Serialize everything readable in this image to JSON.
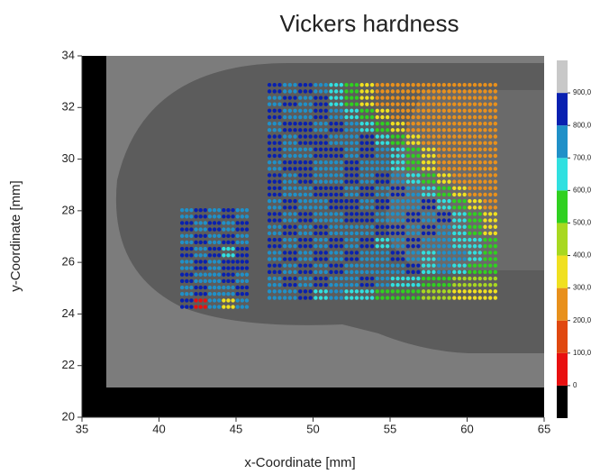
{
  "chart_data": {
    "type": "heatmap",
    "title": "Vickers hardness",
    "x_label": "x-Coordinate [mm]",
    "y_label": "y-Coordinate [mm]",
    "xlim": [
      35,
      65
    ],
    "ylim": [
      20,
      34
    ],
    "xticks": [
      35,
      40,
      45,
      50,
      55,
      60,
      65
    ],
    "yticks": [
      20,
      22,
      24,
      26,
      28,
      30,
      32,
      34
    ],
    "grids": [
      {
        "x": [
          47.5,
          48.5,
          49.5,
          50.5,
          51.5,
          52.5,
          53.5,
          54.5,
          55.5,
          56.5,
          57.5,
          58.5,
          59.5,
          60.5,
          61.5
        ],
        "y": [
          32.75,
          32.25,
          31.75,
          31.25,
          30.75,
          30.25,
          29.75,
          29.25,
          28.75,
          28.25,
          27.75,
          27.25,
          26.75,
          26.25,
          25.75,
          25.25,
          24.75
        ],
        "values": [
          [
            820,
            760,
            850,
            720,
            640,
            520,
            380,
            250,
            250,
            250,
            250,
            250,
            250,
            250,
            250
          ],
          [
            780,
            840,
            700,
            810,
            640,
            520,
            380,
            250,
            250,
            250,
            250,
            250,
            250,
            250,
            250
          ],
          [
            850,
            720,
            790,
            830,
            760,
            640,
            520,
            380,
            250,
            250,
            250,
            250,
            250,
            250,
            250
          ],
          [
            740,
            810,
            860,
            700,
            800,
            780,
            640,
            520,
            380,
            250,
            250,
            250,
            250,
            250,
            250
          ],
          [
            800,
            730,
            820,
            850,
            710,
            790,
            840,
            640,
            520,
            380,
            250,
            250,
            250,
            250,
            250
          ],
          [
            830,
            790,
            720,
            810,
            860,
            740,
            800,
            760,
            640,
            520,
            380,
            250,
            250,
            250,
            250
          ],
          [
            760,
            840,
            800,
            730,
            780,
            850,
            710,
            790,
            640,
            520,
            380,
            250,
            250,
            250,
            250
          ],
          [
            810,
            700,
            850,
            790,
            740,
            820,
            780,
            830,
            720,
            640,
            520,
            380,
            250,
            250,
            250
          ],
          [
            850,
            780,
            720,
            810,
            860,
            750,
            800,
            740,
            820,
            770,
            640,
            520,
            380,
            250,
            250
          ],
          [
            790,
            830,
            760,
            700,
            820,
            850,
            740,
            810,
            780,
            730,
            800,
            640,
            520,
            380,
            250
          ],
          [
            820,
            760,
            840,
            790,
            730,
            810,
            860,
            750,
            700,
            830,
            780,
            800,
            640,
            520,
            380
          ],
          [
            740,
            850,
            780,
            820,
            760,
            700,
            790,
            840,
            810,
            750,
            830,
            720,
            640,
            520,
            380
          ],
          [
            800,
            720,
            830,
            770,
            850,
            740,
            810,
            690,
            760,
            820,
            700,
            780,
            660,
            600,
            550
          ],
          [
            760,
            840,
            700,
            810,
            780,
            830,
            720,
            790,
            850,
            740,
            680,
            760,
            700,
            620,
            580
          ],
          [
            830,
            770,
            810,
            740,
            860,
            700,
            790,
            760,
            720,
            810,
            650,
            700,
            620,
            560,
            500
          ],
          [
            790,
            810,
            750,
            840,
            720,
            780,
            830,
            700,
            640,
            600,
            560,
            520,
            480,
            450,
            420
          ],
          [
            720,
            760,
            800,
            690,
            740,
            680,
            620,
            580,
            540,
            500,
            460,
            420,
            390,
            360,
            340
          ]
        ]
      },
      {
        "x": [
          41.8,
          42.7,
          43.6,
          44.5,
          45.4
        ],
        "y": [
          27.9,
          27.4,
          26.9,
          26.4,
          25.9,
          25.4,
          24.9,
          24.4
        ],
        "values": [
          [
            780,
            820,
            700,
            850,
            760
          ],
          [
            840,
            720,
            800,
            760,
            830
          ],
          [
            700,
            860,
            770,
            820,
            740
          ],
          [
            810,
            750,
            830,
            690,
            800
          ],
          [
            760,
            840,
            720,
            800,
            850
          ],
          [
            830,
            700,
            790,
            860,
            740
          ],
          [
            740,
            810,
            760,
            720,
            820
          ],
          [
            800,
            50,
            730,
            380,
            780
          ]
        ]
      }
    ],
    "colorbar": {
      "lim": [
        -100,
        1000
      ],
      "bins": [
        -100,
        0,
        100,
        200,
        300,
        400,
        500,
        600,
        700,
        800,
        900,
        1000
      ],
      "colors": [
        "#000000",
        "#e81010",
        "#e04810",
        "#e8901c",
        "#f0e020",
        "#a8d820",
        "#30d020",
        "#30e0e0",
        "#2090c8",
        "#0820b0",
        "#c8c8c8"
      ],
      "ticks": [
        0,
        {
          "value": 100,
          "label": "100,0"
        },
        {
          "value": 200,
          "label": "200,0"
        },
        {
          "value": 300,
          "label": "300,0"
        },
        {
          "value": 400,
          "label": "400,0"
        },
        {
          "value": 500,
          "label": "500,0"
        },
        {
          "value": 600,
          "label": "600,0"
        },
        {
          "value": 700,
          "label": "700,0"
        },
        {
          "value": 800,
          "label": "800,0"
        },
        {
          "value": 900,
          "label": "900,0"
        }
      ]
    }
  }
}
